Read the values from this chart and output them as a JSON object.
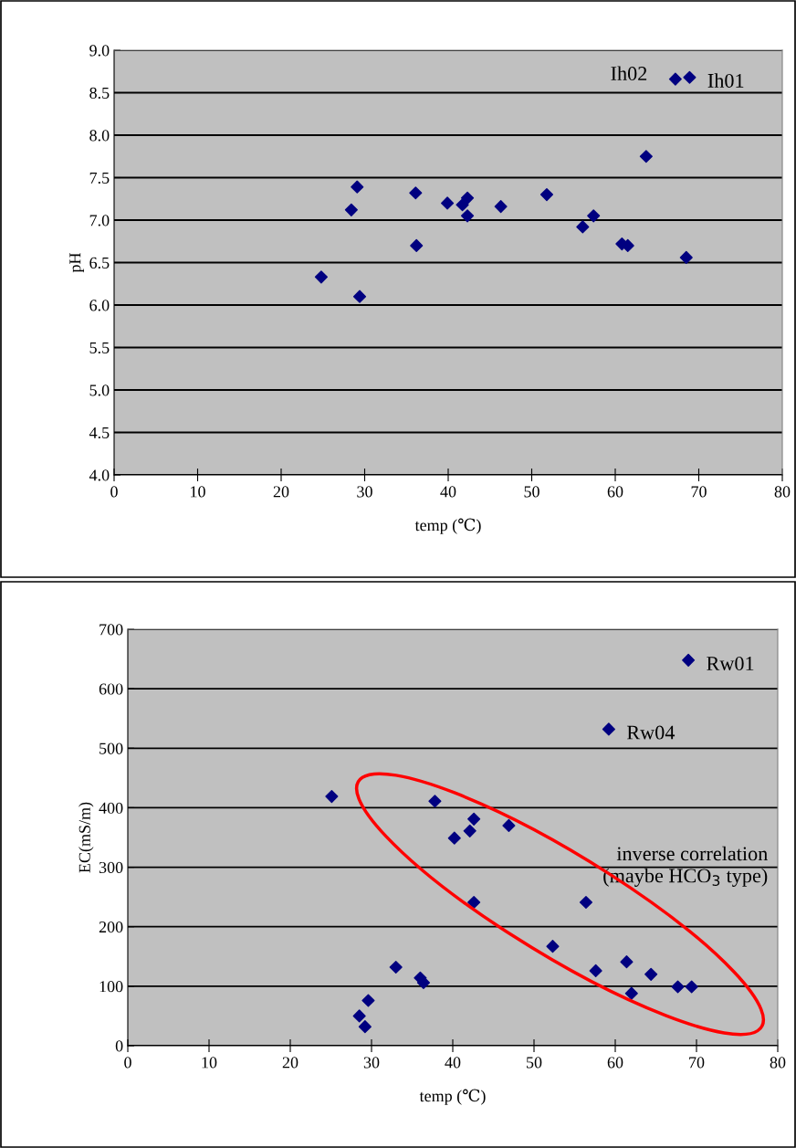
{
  "chart_data": [
    {
      "type": "scatter",
      "xlabel": "temp (℃)",
      "ylabel": "pH",
      "x": [
        24.8,
        28.4,
        29.1,
        29.4,
        36.1,
        36.2,
        39.9,
        41.7,
        42.3,
        42.3,
        46.3,
        51.8,
        56.1,
        57.4,
        60.8,
        61.5,
        63.7,
        68.5,
        67.2,
        68.9
      ],
      "series": [
        {
          "color": "#000080",
          "values": [
            6.33,
            7.12,
            7.39,
            6.1,
            7.32,
            6.7,
            7.2,
            7.18,
            7.26,
            7.05,
            7.16,
            7.3,
            6.92,
            7.05,
            6.72,
            6.7,
            7.75,
            6.56,
            8.66,
            8.68
          ]
        }
      ],
      "xlim": [
        0,
        80
      ],
      "xticks": [
        0,
        10,
        20,
        30,
        40,
        50,
        60,
        70,
        80
      ],
      "ylim": [
        4,
        9
      ],
      "yticks": [
        {
          "value": 4,
          "label": "4.0"
        },
        {
          "value": 4.5,
          "label": "4.5"
        },
        {
          "value": 5,
          "label": "5.0"
        },
        {
          "value": 5.5,
          "label": "5.5"
        },
        {
          "value": 6,
          "label": "6.0"
        },
        {
          "value": 6.5,
          "label": "6.5"
        },
        {
          "value": 7,
          "label": "7.0"
        },
        {
          "value": 7.5,
          "label": "7.5"
        },
        {
          "value": 8,
          "label": "8.0"
        },
        {
          "value": 8.5,
          "label": "8.5"
        },
        {
          "value": 9,
          "label": "9.0"
        }
      ],
      "grid": "y",
      "marker": "diamond",
      "legend": false,
      "annotations": [
        {
          "text": "Ih02",
          "x": 67.2,
          "y": 8.66
        },
        {
          "text": "Ih01",
          "x": 68.9,
          "y": 8.68
        }
      ]
    },
    {
      "type": "scatter",
      "xlabel": "temp (℃)",
      "ylabel": "EC(mS/m)",
      "x": [
        25.1,
        28.5,
        29.2,
        29.6,
        33.0,
        36.0,
        36.4,
        37.8,
        40.2,
        42.1,
        42.6,
        42.6,
        46.9,
        52.3,
        56.4,
        57.6,
        59.2,
        61.4,
        62.0,
        64.4,
        67.7,
        69.4,
        69.0
      ],
      "series": [
        {
          "color": "#000080",
          "values": [
            419,
            50,
            32,
            76,
            132,
            114,
            106,
            411,
            349,
            361,
            381,
            241,
            370,
            167,
            241,
            126,
            532,
            141,
            88,
            120,
            99,
            99,
            648
          ]
        }
      ],
      "xlim": [
        0,
        80
      ],
      "xticks": [
        0,
        10,
        20,
        30,
        40,
        50,
        60,
        70,
        80
      ],
      "ylim": [
        0,
        700
      ],
      "yticks": [
        0,
        100,
        200,
        300,
        400,
        500,
        600,
        700
      ],
      "grid": "y",
      "marker": "diamond",
      "legend": false,
      "annotations": [
        {
          "text": "Rw01",
          "x": 69.0,
          "y": 648
        },
        {
          "text": "Rw04",
          "x": 59.2,
          "y": 532
        },
        "inverse correlation\n(maybe HCO$_{3}$ type)"
      ]
    }
  ]
}
